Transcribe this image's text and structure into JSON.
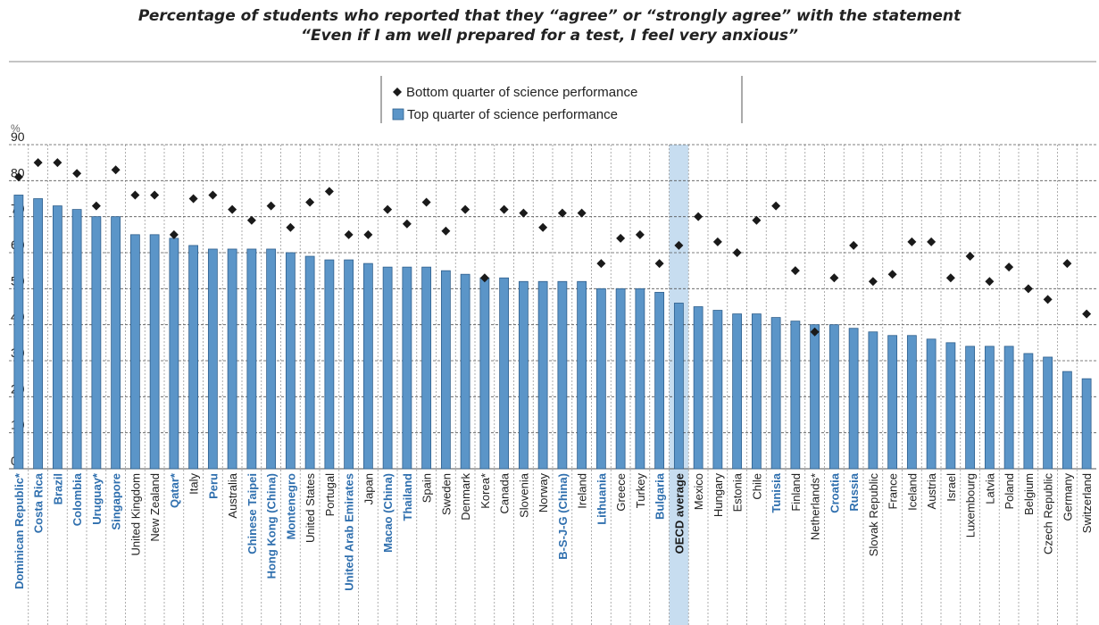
{
  "chart_data": {
    "type": "bar",
    "title": "Percentage of students who reported that they “agree” or “strongly agree” with the statement",
    "subtitle": "“Even if I am well prepared for a test, I feel very anxious”",
    "ylabel": "%",
    "ylim": [
      0,
      90
    ],
    "yticks": [
      0,
      10,
      20,
      30,
      40,
      50,
      60,
      70,
      80,
      90
    ],
    "grid": true,
    "legend_position": "top-center",
    "colors": {
      "bar": "#5b95c8",
      "bar_edge": "#2f5f8c",
      "marker": "#1a1a1a",
      "partner_label": "#2f6fae",
      "oecd_label": "#1a1a1a",
      "highlight": "#c7ddf0",
      "text": "#222222"
    },
    "highlight_category": "OECD average",
    "categories": [
      "Dominican Republic*",
      "Costa Rica",
      "Brazil",
      "Colombia",
      "Uruguay*",
      "Singapore",
      "United Kingdom",
      "New Zealand",
      "Qatar*",
      "Italy",
      "Peru",
      "Australia",
      "Chinese Taipei",
      "Hong Kong (China)",
      "Montenegro",
      "United States",
      "Portugal",
      "United Arab Emirates",
      "Japan",
      "Macao (China)",
      "Thailand",
      "Spain",
      "Sweden",
      "Denmark",
      "Korea*",
      "Canada",
      "Slovenia",
      "Norway",
      "B-S-J-G (China)",
      "Ireland",
      "Lithuania",
      "Greece",
      "Turkey",
      "Bulgaria",
      "OECD average",
      "Mexico",
      "Hungary",
      "Estonia",
      "Chile",
      "Tunisia",
      "Finland",
      "Netherlands*",
      "Croatia",
      "Russia",
      "Slovak Republic",
      "France",
      "Iceland",
      "Austria",
      "Israel",
      "Luxembourg",
      "Latvia",
      "Poland",
      "Belgium",
      "Czech Republic",
      "Germany",
      "Switzerland"
    ],
    "partner": [
      true,
      true,
      true,
      true,
      true,
      true,
      false,
      false,
      true,
      false,
      true,
      false,
      true,
      true,
      true,
      false,
      false,
      true,
      false,
      true,
      true,
      false,
      false,
      false,
      false,
      false,
      false,
      false,
      true,
      false,
      true,
      false,
      false,
      true,
      false,
      false,
      false,
      false,
      false,
      true,
      false,
      false,
      true,
      true,
      false,
      false,
      false,
      false,
      false,
      false,
      false,
      false,
      false,
      false,
      false,
      false
    ],
    "series": [
      {
        "name": "Bottom quarter of science performance",
        "marker": "diamond",
        "values": [
          81,
          85,
          85,
          82,
          73,
          83,
          76,
          76,
          65,
          75,
          76,
          72,
          69,
          73,
          67,
          74,
          77,
          65,
          65,
          72,
          68,
          74,
          66,
          72,
          53,
          72,
          71,
          67,
          71,
          71,
          57,
          64,
          65,
          57,
          62,
          70,
          63,
          60,
          69,
          73,
          55,
          38,
          53,
          62,
          52,
          54,
          63,
          63,
          53,
          59,
          52,
          56,
          50,
          47,
          57,
          43
        ]
      },
      {
        "name": "Top quarter of science performance",
        "marker": "bar",
        "values": [
          76,
          75,
          73,
          72,
          70,
          70,
          65,
          65,
          64,
          62,
          61,
          61,
          61,
          61,
          60,
          59,
          58,
          58,
          57,
          56,
          56,
          56,
          55,
          54,
          53,
          53,
          52,
          52,
          52,
          52,
          50,
          50,
          50,
          49,
          46,
          45,
          44,
          43,
          43,
          42,
          41,
          40,
          40,
          39,
          38,
          37,
          37,
          36,
          35,
          34,
          34,
          34,
          32,
          31,
          27,
          25
        ]
      }
    ]
  }
}
